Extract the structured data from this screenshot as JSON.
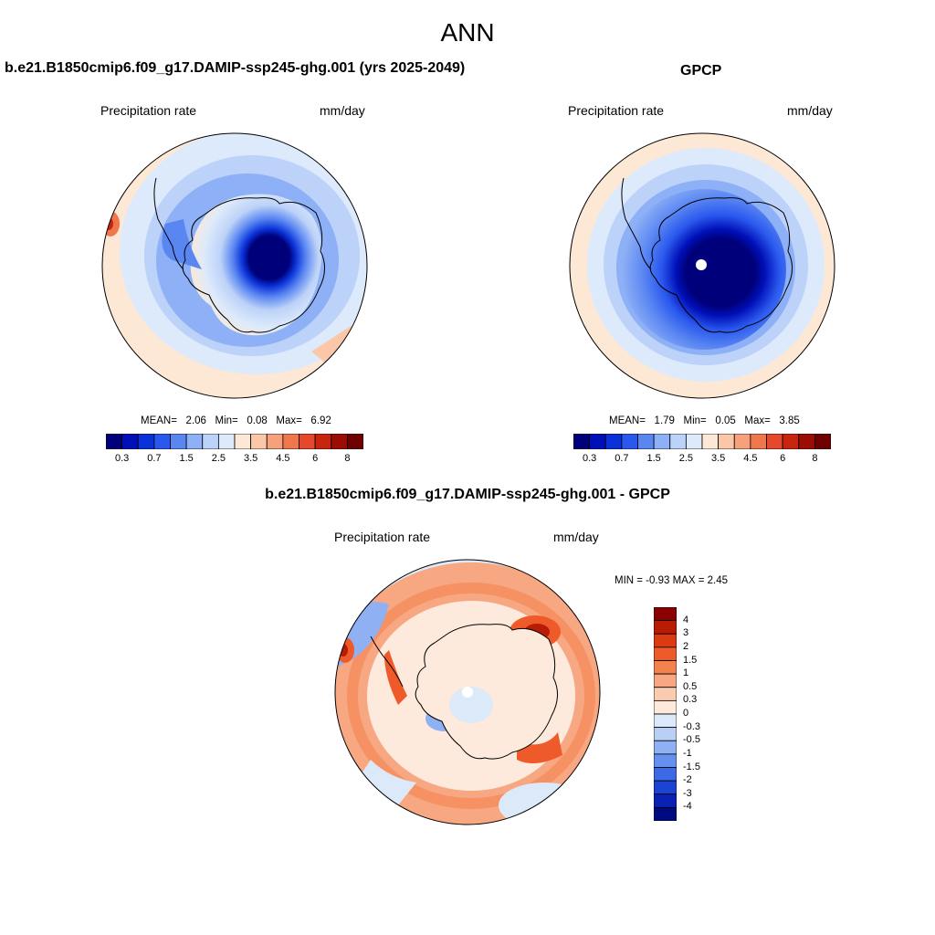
{
  "title": "ANN",
  "panels": {
    "model": {
      "title": "b.e21.B1850cmip6.f09_g17.DAMIP-ssp245-ghg.001 (yrs 2025-2049)",
      "left_label": "Precipitation rate",
      "right_label": "mm/day",
      "stats": {
        "mean_label": "MEAN=",
        "mean": "2.06",
        "min_label": "Min=",
        "min": "0.08",
        "max_label": "Max=",
        "max": "6.92"
      }
    },
    "obs": {
      "title": "GPCP",
      "left_label": "Precipitation rate",
      "right_label": "mm/day",
      "stats": {
        "mean_label": "MEAN=",
        "mean": "1.79",
        "min_label": "Min=",
        "min": "0.05",
        "max_label": "Max=",
        "max": "3.85"
      }
    },
    "diff": {
      "title": "b.e21.B1850cmip6.f09_g17.DAMIP-ssp245-ghg.001 - GPCP",
      "left_label": "Precipitation rate",
      "right_label": "mm/day",
      "minmax": "MIN =  -0.93 MAX =   2.45"
    }
  },
  "colorbar_abs": {
    "colors": [
      "#00007a",
      "#0010b8",
      "#0a32d8",
      "#2a58ee",
      "#5a86f2",
      "#8eb0f6",
      "#bcd2f8",
      "#ddeafb",
      "#fde8d6",
      "#fbc7a8",
      "#f6a07c",
      "#f0764e",
      "#e5482a",
      "#c8250f",
      "#9c0c04",
      "#6e0000"
    ],
    "labels": [
      "0.3",
      "0.7",
      "1.5",
      "2.5",
      "3.5",
      "4.5",
      "6",
      "8"
    ]
  },
  "colorbar_diff": {
    "colors": [
      "#8a0000",
      "#b81c05",
      "#dc3a10",
      "#ef5a2a",
      "#f3824e",
      "#f7a882",
      "#fbcbb0",
      "#fdeadc",
      "#dce9f9",
      "#b9cff6",
      "#8fb1f3",
      "#6590ee",
      "#3c6ae6",
      "#1c44d4",
      "#0a22b4",
      "#000a80"
    ],
    "labels": [
      "4",
      "3",
      "2",
      "1.5",
      "1",
      "0.5",
      "0.3",
      "0",
      "-0.3",
      "-0.5",
      "-1",
      "-1.5",
      "-2",
      "-3",
      "-4"
    ]
  }
}
